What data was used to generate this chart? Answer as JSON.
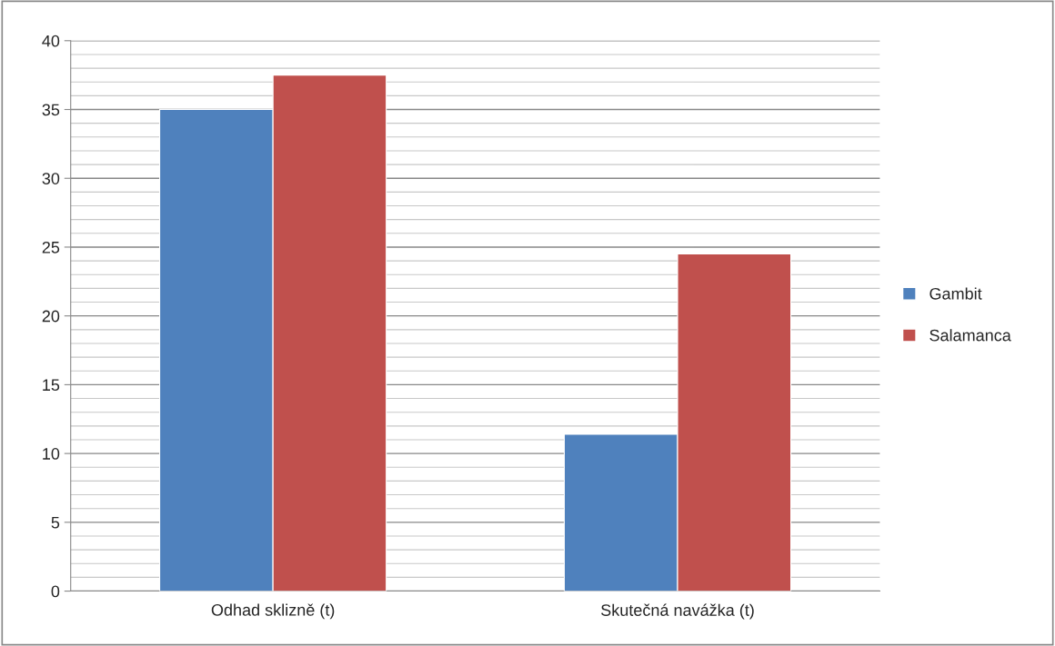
{
  "chart_data": {
    "type": "bar",
    "categories": [
      "Odhad sklizně (t)",
      "Skutečná navážka (t)"
    ],
    "series": [
      {
        "name": "Gambit",
        "color": "#4f81bd",
        "values": [
          35,
          11.4
        ]
      },
      {
        "name": "Salamanca",
        "color": "#c0504d",
        "values": [
          37.5,
          24.5
        ]
      }
    ],
    "ylim": [
      0,
      40
    ],
    "yticks": [
      0,
      {
        "value": 1,
        "label": null
      },
      {
        "value": 2,
        "label": null
      },
      {
        "value": 3,
        "label": null
      },
      {
        "value": 4,
        "label": null
      },
      5,
      {
        "value": 6,
        "label": null
      },
      {
        "value": 7,
        "label": null
      },
      {
        "value": 8,
        "label": null
      },
      {
        "value": 9,
        "label": null
      },
      10,
      {
        "value": 11,
        "label": null
      },
      {
        "value": 12,
        "label": null
      },
      {
        "value": 13,
        "label": null
      },
      {
        "value": 14,
        "label": null
      },
      15,
      {
        "value": 16,
        "label": null
      },
      {
        "value": 17,
        "label": null
      },
      {
        "value": 18,
        "label": null
      },
      {
        "value": 19,
        "label": null
      },
      20,
      {
        "value": 21,
        "label": null
      },
      {
        "value": 22,
        "label": null
      },
      {
        "value": 23,
        "label": null
      },
      {
        "value": 24,
        "label": null
      },
      25,
      {
        "value": 26,
        "label": null
      },
      {
        "value": 27,
        "label": null
      },
      {
        "value": 28,
        "label": null
      },
      {
        "value": 29,
        "label": null
      },
      30,
      {
        "value": 31,
        "label": null
      },
      {
        "value": 32,
        "label": null
      },
      {
        "value": 33,
        "label": null
      },
      {
        "value": 34,
        "label": null
      },
      35,
      {
        "value": 36,
        "label": null
      },
      {
        "value": 37,
        "label": null
      },
      {
        "value": 38,
        "label": null
      },
      {
        "value": 39,
        "label": null
      },
      40
    ],
    "grid": "y",
    "legend": "right"
  }
}
